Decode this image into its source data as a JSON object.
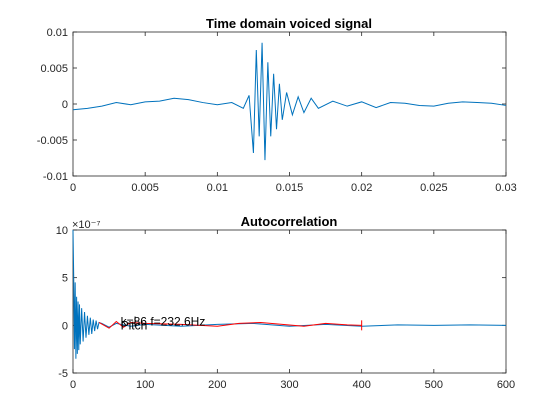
{
  "figure": {
    "background": "#ffffff",
    "axis_color": "#262626",
    "series_color": "#0072bd",
    "highlight_color": "#ff0000"
  },
  "chart_data": [
    {
      "type": "line",
      "title": "Time domain voiced signal",
      "xlabel": "",
      "ylabel": "",
      "xlim": [
        0,
        0.03
      ],
      "ylim": [
        -0.01,
        0.01
      ],
      "xticks": [
        0,
        0.005,
        0.01,
        0.015,
        0.02,
        0.025,
        0.03
      ],
      "xtick_labels": [
        "0",
        "0.005",
        "0.01",
        "0.015",
        "0.02",
        "0.025",
        "0.03"
      ],
      "yticks": [
        -0.01,
        -0.005,
        0,
        0.005,
        0.01
      ],
      "ytick_labels": [
        "-0.01",
        "-0.005",
        "0",
        "0.005",
        "0.01"
      ],
      "grid": false,
      "legend": "none",
      "series": [
        {
          "color": "#0072bd",
          "x": [
            0,
            0.001,
            0.002,
            0.003,
            0.004,
            0.005,
            0.006,
            0.007,
            0.008,
            0.009,
            0.01,
            0.011,
            0.0118,
            0.0122,
            0.0125,
            0.0127,
            0.0129,
            0.0131,
            0.0133,
            0.0135,
            0.0137,
            0.0139,
            0.0141,
            0.0143,
            0.0145,
            0.0148,
            0.0152,
            0.0156,
            0.016,
            0.0165,
            0.017,
            0.018,
            0.019,
            0.02,
            0.021,
            0.022,
            0.023,
            0.024,
            0.025,
            0.026,
            0.027,
            0.028,
            0.029,
            0.03
          ],
          "y": [
            -0.0008,
            -0.0006,
            -0.0003,
            0.0002,
            -0.0001,
            0.0003,
            0.0004,
            0.0008,
            0.0006,
            0.0002,
            -0.0001,
            0.0002,
            -0.0006,
            0.0012,
            -0.0068,
            0.0075,
            -0.0045,
            0.0085,
            -0.0078,
            0.0058,
            -0.0045,
            0.0042,
            -0.0035,
            0.0028,
            -0.0022,
            0.0016,
            -0.0015,
            0.001,
            -0.0012,
            0.0008,
            -0.0006,
            0.0004,
            -0.0003,
            0.0003,
            -0.0005,
            0.0002,
            0.0001,
            -0.0002,
            -0.0003,
            0.0001,
            0.0003,
            0.0002,
            0.0001,
            -0.0002
          ]
        }
      ]
    },
    {
      "type": "line",
      "title": "Autocorrelation",
      "xlabel": "",
      "ylabel": "",
      "y_exponent": "×10⁻⁷",
      "xlim": [
        0,
        600
      ],
      "ylim": [
        -5,
        10
      ],
      "xticks": [
        0,
        100,
        200,
        300,
        400,
        500,
        600
      ],
      "xtick_labels": [
        "0",
        "100",
        "200",
        "300",
        "400",
        "500",
        "600"
      ],
      "yticks": [
        -5,
        0,
        5,
        10
      ],
      "ytick_labels": [
        "-5",
        "0",
        "5",
        "10"
      ],
      "grid": false,
      "legend": "none",
      "series": [
        {
          "color": "#0072bd",
          "x": [
            0,
            1,
            2,
            3,
            4,
            5,
            6,
            7,
            8,
            9,
            10,
            12,
            14,
            16,
            18,
            20,
            22,
            24,
            26,
            28,
            30,
            32,
            34,
            36,
            40,
            50,
            60,
            80,
            100,
            150,
            200,
            250,
            300,
            350,
            400,
            450,
            500,
            550,
            600
          ],
          "y": [
            10,
            5,
            -2.5,
            4.5,
            -3.5,
            3,
            -3,
            2.5,
            -2.6,
            2.2,
            -2,
            1.8,
            -1.7,
            1.4,
            -1.3,
            1.0,
            -1.0,
            0.8,
            -0.9,
            0.6,
            -0.6,
            0.5,
            -0.4,
            0.3,
            0.2,
            -0.2,
            0.2,
            -0.1,
            0.1,
            -0.1,
            0.1,
            0.2,
            -0.1,
            0.1,
            -0.1,
            0.05,
            0.0,
            0.05,
            0.0
          ]
        },
        {
          "color": "#ff0000",
          "x": [
            36,
            50,
            60,
            70,
            80,
            100,
            150,
            200,
            230,
            260,
            290,
            320,
            350,
            380,
            400
          ],
          "y": [
            0.3,
            -0.3,
            0.4,
            -0.2,
            0.3,
            0.2,
            0.1,
            -0.1,
            0.2,
            0.3,
            0.1,
            -0.1,
            0.2,
            0.05,
            0.0
          ]
        }
      ],
      "markers": [
        {
          "x": 86,
          "y": 0.4,
          "color": "#000000"
        },
        {
          "x": 400,
          "y": 0.0,
          "color": "#ff0000"
        }
      ],
      "annotations": [
        {
          "text": "k=86 f=232.6Hz",
          "x": 66,
          "y": 0.4
        },
        {
          "text": "Pitch",
          "x": 66,
          "y": 0.0
        }
      ]
    }
  ]
}
